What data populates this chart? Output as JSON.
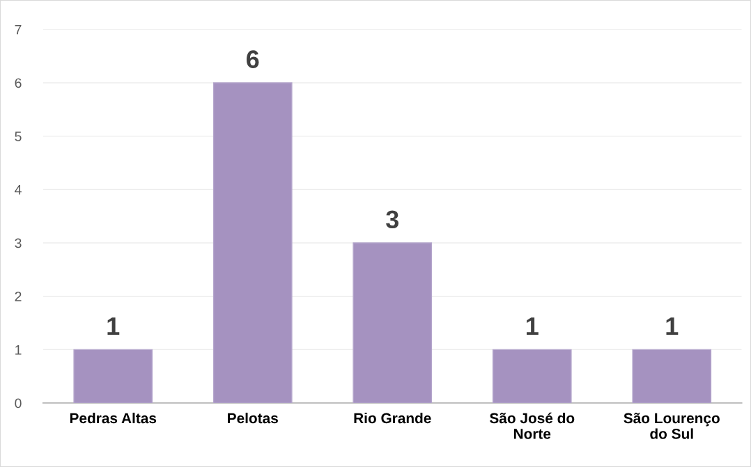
{
  "chart_data": {
    "type": "bar",
    "categories": [
      "Pedras Altas",
      "Pelotas",
      "Rio Grande",
      "São José do\nNorte",
      "São Lourenço\ndo Sul"
    ],
    "values": [
      1,
      6,
      3,
      1,
      1
    ],
    "color": "#a592c0",
    "ylim": [
      0,
      7
    ],
    "yticks": [
      0,
      1,
      2,
      3,
      4,
      5,
      6,
      7
    ],
    "grid": "y",
    "data_labels": true,
    "legend": false
  }
}
